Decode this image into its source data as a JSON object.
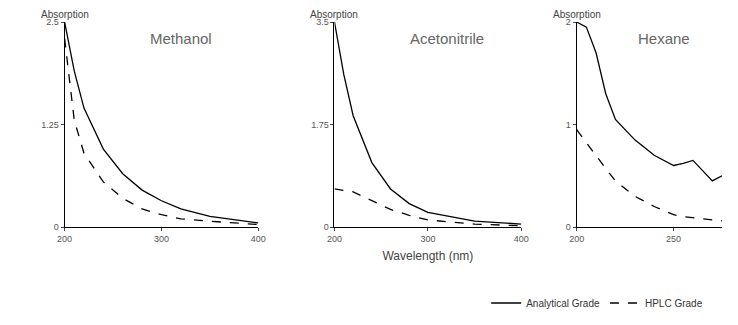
{
  "chart_data": [
    {
      "type": "line",
      "title": "Methanol",
      "y_label": "Absorption",
      "x": [
        200,
        210,
        220,
        240,
        260,
        280,
        300,
        320,
        350,
        400
      ],
      "xlim": [
        200,
        400
      ],
      "xticks": [
        200,
        300,
        400
      ],
      "ylim": [
        0,
        2.5
      ],
      "yticks": [
        0,
        1.25,
        2.5
      ],
      "series": [
        {
          "name": "Analytical Grade",
          "color": "#000000",
          "line_style": "solid",
          "values": [
            2.5,
            1.9,
            1.45,
            0.95,
            0.65,
            0.45,
            0.32,
            0.22,
            0.13,
            0.05
          ]
        },
        {
          "name": "HPLC Grade",
          "color": "#000000",
          "line_style": "dash",
          "values": [
            2.3,
            1.3,
            0.9,
            0.55,
            0.35,
            0.22,
            0.15,
            0.1,
            0.07,
            0.03
          ]
        }
      ]
    },
    {
      "type": "line",
      "title": "Acetonitrile",
      "y_label": "Absorption",
      "x_label": "Wavelength (nm)",
      "x": [
        200,
        210,
        220,
        240,
        260,
        280,
        300,
        350,
        400
      ],
      "xlim": [
        200,
        400
      ],
      "xticks": [
        200,
        300,
        400
      ],
      "ylim": [
        0,
        3.5
      ],
      "yticks": [
        0,
        1.75,
        3.5
      ],
      "series": [
        {
          "name": "Analytical Grade",
          "color": "#000000",
          "line_style": "solid",
          "values": [
            3.5,
            2.6,
            1.9,
            1.1,
            0.65,
            0.4,
            0.25,
            0.1,
            0.05
          ]
        },
        {
          "name": "HPLC Grade",
          "color": "#000000",
          "line_style": "dash",
          "values": [
            0.65,
            0.63,
            0.6,
            0.45,
            0.3,
            0.2,
            0.12,
            0.05,
            0.02
          ]
        }
      ]
    },
    {
      "type": "line",
      "title": "Hexane",
      "y_label": "Absorption",
      "x": [
        200,
        205,
        210,
        215,
        220,
        230,
        240,
        250,
        255,
        260,
        265,
        270,
        275
      ],
      "xlim": [
        200,
        275
      ],
      "xticks": [
        200,
        250
      ],
      "ylim": [
        0,
        2
      ],
      "yticks": [
        0,
        1,
        2
      ],
      "series": [
        {
          "name": "Analytical Grade",
          "color": "#000000",
          "line_style": "solid",
          "values": [
            2,
            1.95,
            1.7,
            1.3,
            1.05,
            0.85,
            0.7,
            0.6,
            0.62,
            0.65,
            0.55,
            0.45,
            0.5
          ]
        },
        {
          "name": "HPLC Grade",
          "color": "#000000",
          "line_style": "dash",
          "values": [
            0.95,
            0.82,
            0.7,
            0.57,
            0.45,
            0.3,
            0.2,
            0.12,
            0.1,
            0.09,
            0.08,
            0.07,
            0.06
          ]
        }
      ]
    }
  ]
}
